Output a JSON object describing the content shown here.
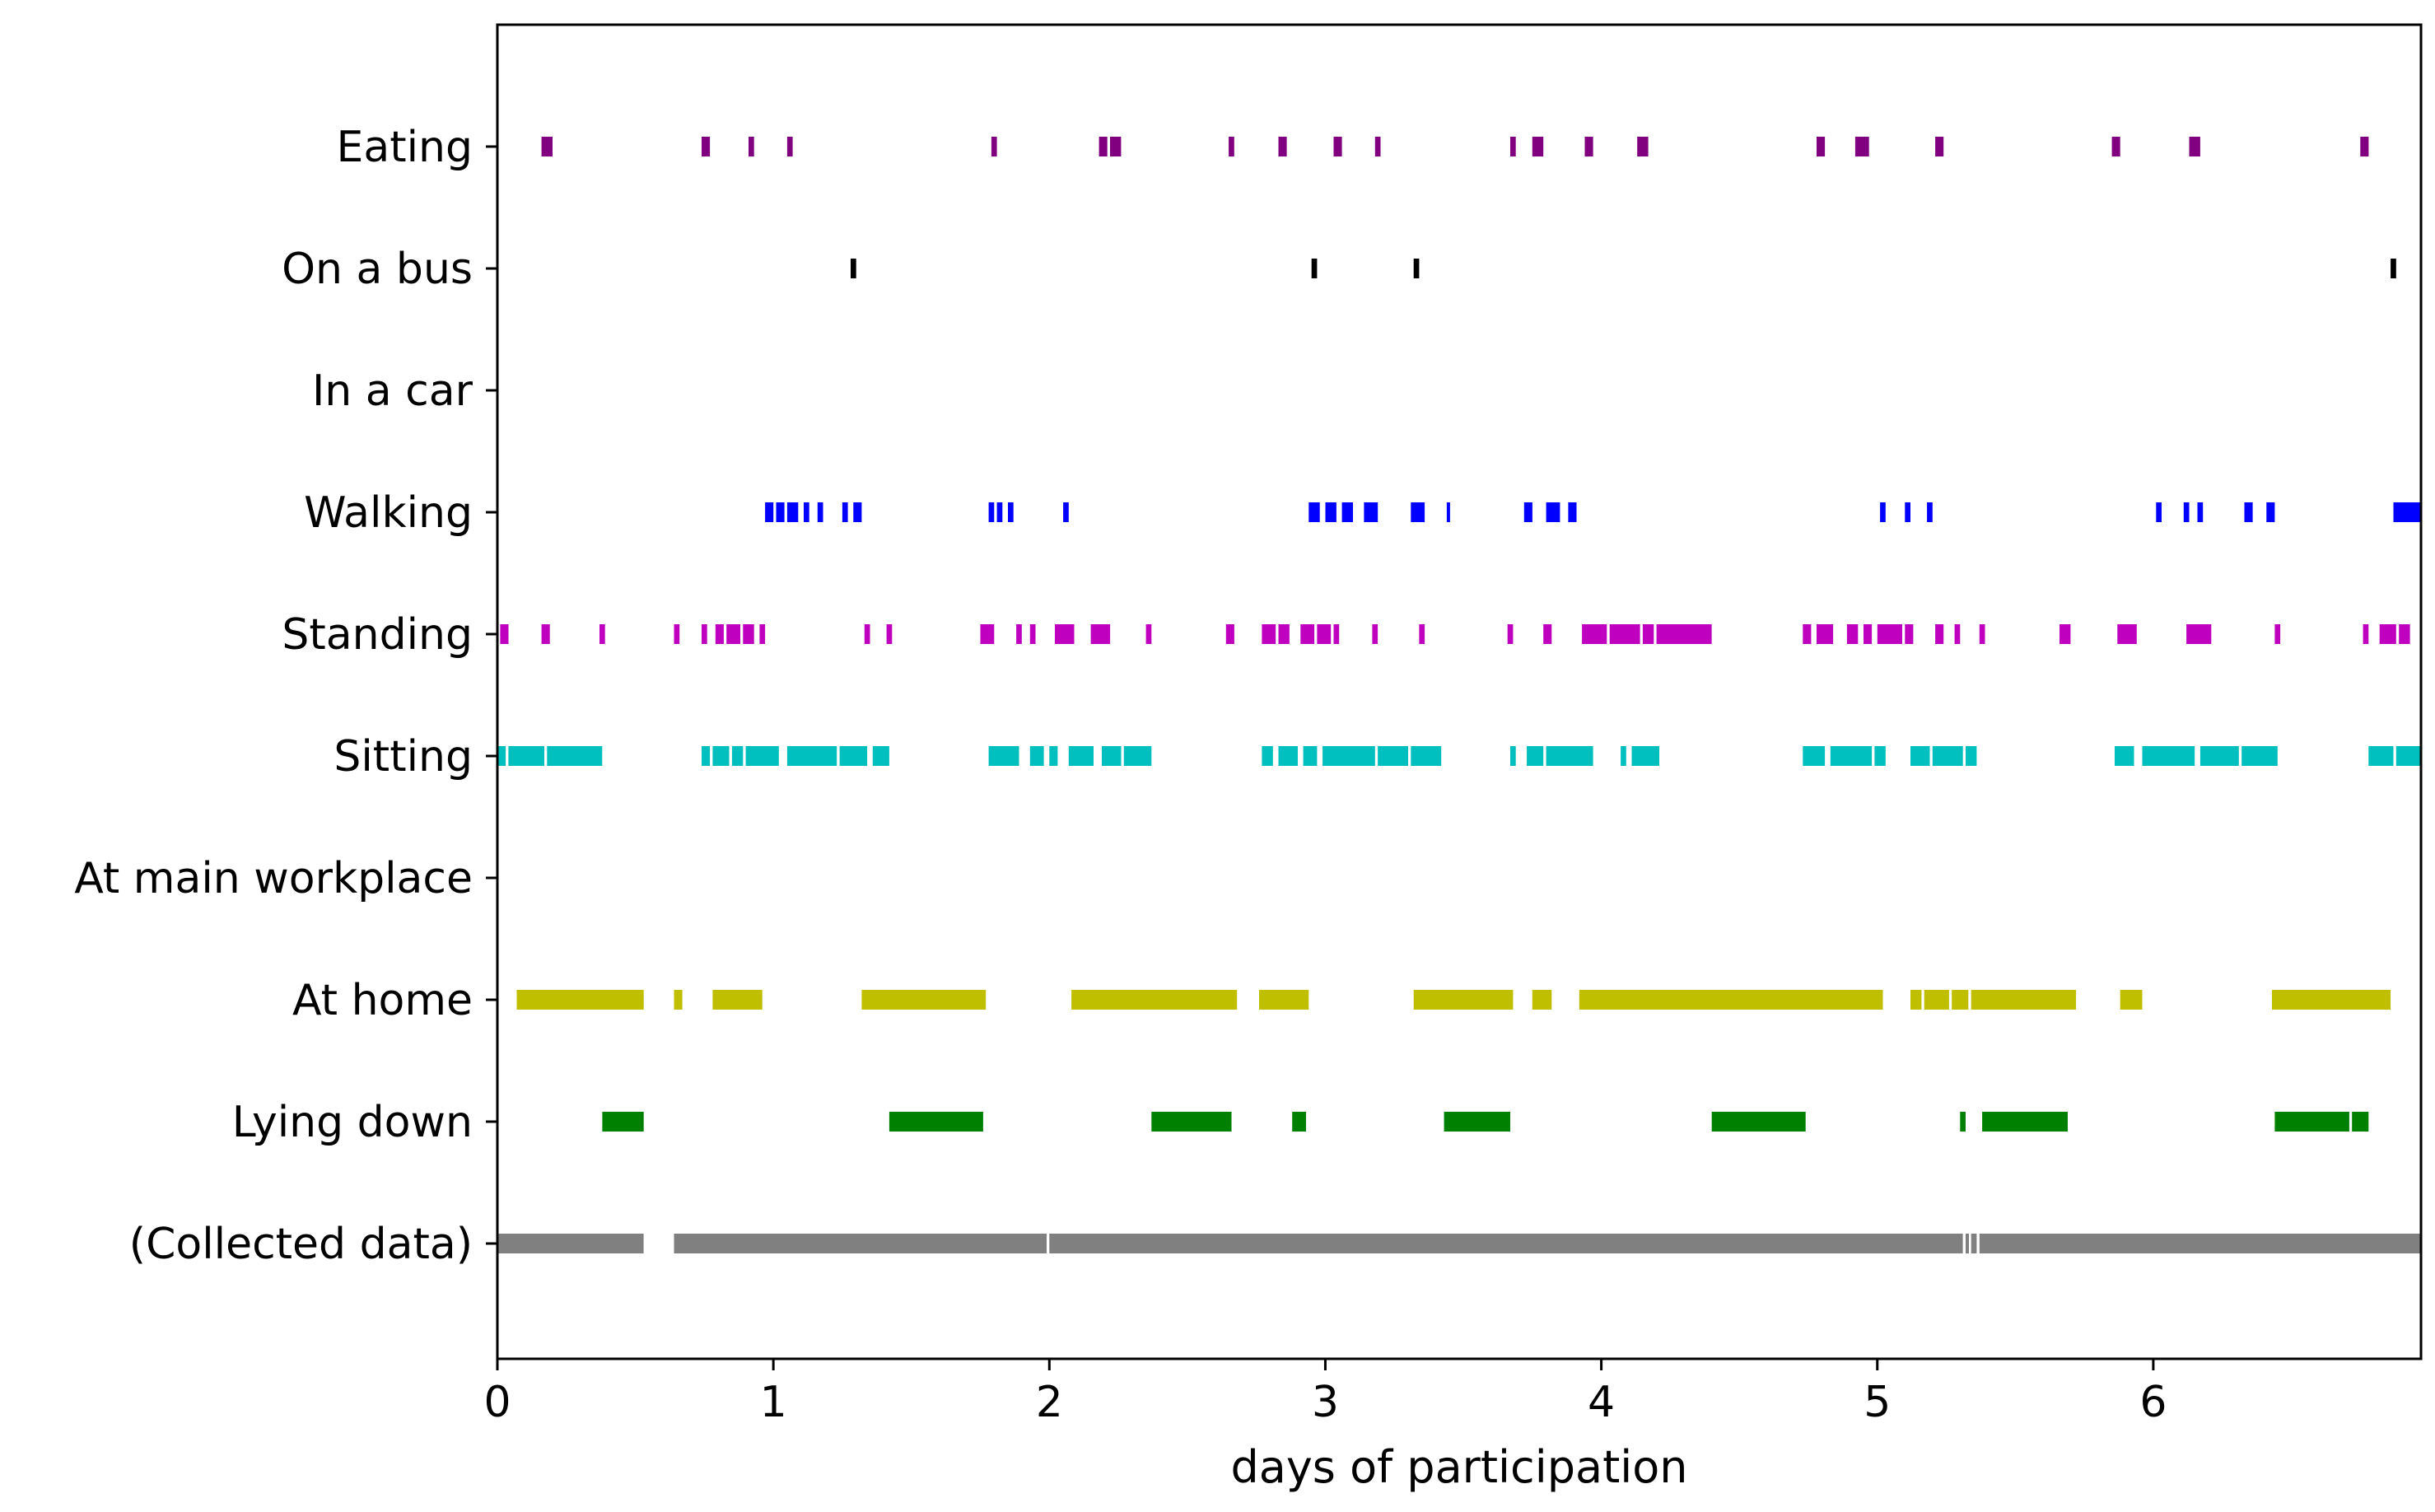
{
  "chart_data": {
    "type": "bar",
    "orientation": "horizontal-timeline",
    "title": "",
    "xlabel": "days of participation",
    "ylabel": "",
    "xlim": [
      0,
      6.97
    ],
    "xticks": [
      0,
      1,
      2,
      3,
      4,
      5,
      6
    ],
    "grid": false,
    "legend": "none",
    "categories": [
      "Eating",
      "On a bus",
      "In a car",
      "Walking",
      "Standing",
      "Sitting",
      "At main workplace",
      "At home",
      "Lying down",
      "(Collected data)"
    ],
    "series": [
      {
        "category": "Eating",
        "color": "#800080",
        "intervals": [
          [
            0.16,
            0.2
          ],
          [
            0.74,
            0.77
          ],
          [
            0.91,
            0.93
          ],
          [
            1.05,
            1.07
          ],
          [
            1.79,
            1.81
          ],
          [
            2.18,
            2.21
          ],
          [
            2.22,
            2.26
          ],
          [
            2.65,
            2.67
          ],
          [
            2.83,
            2.86
          ],
          [
            3.03,
            3.06
          ],
          [
            3.18,
            3.2
          ],
          [
            3.67,
            3.69
          ],
          [
            3.75,
            3.79
          ],
          [
            3.94,
            3.97
          ],
          [
            4.13,
            4.17
          ],
          [
            4.78,
            4.81
          ],
          [
            4.92,
            4.97
          ],
          [
            5.21,
            5.24
          ],
          [
            5.85,
            5.88
          ],
          [
            6.13,
            6.17
          ],
          [
            6.75,
            6.78
          ]
        ]
      },
      {
        "category": "On a bus",
        "color": "#000000",
        "intervals": [
          [
            1.28,
            1.3
          ],
          [
            2.95,
            2.97
          ],
          [
            3.32,
            3.34
          ],
          [
            6.86,
            6.88
          ]
        ]
      },
      {
        "category": "In a car",
        "color": "#7f7f7f",
        "intervals": []
      },
      {
        "category": "Walking",
        "color": "#0000ff",
        "intervals": [
          [
            0.97,
            1.0
          ],
          [
            1.01,
            1.04
          ],
          [
            1.05,
            1.09
          ],
          [
            1.11,
            1.13
          ],
          [
            1.16,
            1.18
          ],
          [
            1.25,
            1.27
          ],
          [
            1.29,
            1.32
          ],
          [
            1.78,
            1.8
          ],
          [
            1.81,
            1.83
          ],
          [
            1.85,
            1.87
          ],
          [
            2.05,
            2.07
          ],
          [
            2.94,
            2.98
          ],
          [
            3.0,
            3.04
          ],
          [
            3.06,
            3.1
          ],
          [
            3.14,
            3.19
          ],
          [
            3.31,
            3.36
          ],
          [
            3.44,
            3.45
          ],
          [
            3.72,
            3.75
          ],
          [
            3.8,
            3.85
          ],
          [
            3.88,
            3.91
          ],
          [
            5.01,
            5.03
          ],
          [
            5.1,
            5.12
          ],
          [
            5.18,
            5.2
          ],
          [
            6.01,
            6.03
          ],
          [
            6.11,
            6.13
          ],
          [
            6.16,
            6.18
          ],
          [
            6.33,
            6.36
          ],
          [
            6.41,
            6.44
          ],
          [
            6.87,
            6.97
          ]
        ]
      },
      {
        "category": "Standing",
        "color": "#bf00bf",
        "intervals": [
          [
            0.01,
            0.04
          ],
          [
            0.16,
            0.19
          ],
          [
            0.37,
            0.39
          ],
          [
            0.64,
            0.66
          ],
          [
            0.74,
            0.76
          ],
          [
            0.79,
            0.82
          ],
          [
            0.83,
            0.88
          ],
          [
            0.89,
            0.93
          ],
          [
            0.95,
            0.97
          ],
          [
            1.33,
            1.35
          ],
          [
            1.41,
            1.43
          ],
          [
            1.75,
            1.8
          ],
          [
            1.88,
            1.9
          ],
          [
            1.93,
            1.95
          ],
          [
            2.02,
            2.09
          ],
          [
            2.15,
            2.22
          ],
          [
            2.35,
            2.37
          ],
          [
            2.64,
            2.67
          ],
          [
            2.77,
            2.82
          ],
          [
            2.83,
            2.87
          ],
          [
            2.91,
            2.96
          ],
          [
            2.97,
            3.02
          ],
          [
            3.03,
            3.05
          ],
          [
            3.17,
            3.19
          ],
          [
            3.34,
            3.36
          ],
          [
            3.66,
            3.68
          ],
          [
            3.79,
            3.82
          ],
          [
            3.93,
            4.02
          ],
          [
            4.03,
            4.14
          ],
          [
            4.15,
            4.19
          ],
          [
            4.2,
            4.4
          ],
          [
            4.73,
            4.76
          ],
          [
            4.78,
            4.84
          ],
          [
            4.89,
            4.93
          ],
          [
            4.95,
            4.98
          ],
          [
            5.0,
            5.09
          ],
          [
            5.1,
            5.13
          ],
          [
            5.21,
            5.24
          ],
          [
            5.28,
            5.3
          ],
          [
            5.37,
            5.39
          ],
          [
            5.66,
            5.7
          ],
          [
            5.87,
            5.94
          ],
          [
            6.12,
            6.21
          ],
          [
            6.44,
            6.46
          ],
          [
            6.76,
            6.78
          ],
          [
            6.82,
            6.88
          ],
          [
            6.89,
            6.93
          ]
        ]
      },
      {
        "category": "Sitting",
        "color": "#00bfbf",
        "intervals": [
          [
            0.0,
            0.03
          ],
          [
            0.04,
            0.17
          ],
          [
            0.18,
            0.38
          ],
          [
            0.74,
            0.77
          ],
          [
            0.78,
            0.84
          ],
          [
            0.85,
            0.89
          ],
          [
            0.9,
            1.02
          ],
          [
            1.05,
            1.23
          ],
          [
            1.24,
            1.34
          ],
          [
            1.36,
            1.42
          ],
          [
            1.78,
            1.89
          ],
          [
            1.93,
            1.98
          ],
          [
            2.0,
            2.03
          ],
          [
            2.07,
            2.16
          ],
          [
            2.19,
            2.26
          ],
          [
            2.27,
            2.37
          ],
          [
            2.77,
            2.81
          ],
          [
            2.83,
            2.9
          ],
          [
            2.92,
            2.97
          ],
          [
            2.99,
            3.18
          ],
          [
            3.19,
            3.3
          ],
          [
            3.31,
            3.42
          ],
          [
            3.67,
            3.69
          ],
          [
            3.73,
            3.79
          ],
          [
            3.8,
            3.97
          ],
          [
            4.07,
            4.09
          ],
          [
            4.11,
            4.21
          ],
          [
            4.73,
            4.81
          ],
          [
            4.83,
            4.98
          ],
          [
            4.99,
            5.03
          ],
          [
            5.12,
            5.19
          ],
          [
            5.2,
            5.31
          ],
          [
            5.32,
            5.36
          ],
          [
            5.86,
            5.93
          ],
          [
            5.96,
            6.15
          ],
          [
            6.17,
            6.31
          ],
          [
            6.32,
            6.45
          ],
          [
            6.78,
            6.87
          ],
          [
            6.88,
            6.97
          ]
        ]
      },
      {
        "category": "At main workplace",
        "color": "#1f77b4",
        "intervals": []
      },
      {
        "category": "At home",
        "color": "#bfbf00",
        "intervals": [
          [
            0.07,
            0.53
          ],
          [
            0.64,
            0.67
          ],
          [
            0.78,
            0.96
          ],
          [
            1.32,
            1.77
          ],
          [
            2.08,
            2.68
          ],
          [
            2.76,
            2.94
          ],
          [
            3.32,
            3.68
          ],
          [
            3.75,
            3.82
          ],
          [
            3.92,
            5.02
          ],
          [
            5.12,
            5.16
          ],
          [
            5.17,
            5.26
          ],
          [
            5.27,
            5.33
          ],
          [
            5.34,
            5.72
          ],
          [
            5.88,
            5.96
          ],
          [
            6.43,
            6.86
          ]
        ]
      },
      {
        "category": "Lying down",
        "color": "#008000",
        "intervals": [
          [
            0.38,
            0.53
          ],
          [
            1.42,
            1.76
          ],
          [
            2.37,
            2.66
          ],
          [
            2.88,
            2.93
          ],
          [
            3.43,
            3.67
          ],
          [
            4.4,
            4.74
          ],
          [
            5.3,
            5.32
          ],
          [
            5.38,
            5.69
          ],
          [
            6.44,
            6.71
          ],
          [
            6.72,
            6.78
          ]
        ]
      },
      {
        "category": "(Collected data)",
        "color": "#808080",
        "intervals": [
          [
            0.0,
            0.53
          ],
          [
            0.64,
            1.99
          ],
          [
            2.0,
            5.31
          ],
          [
            5.32,
            5.33
          ],
          [
            5.34,
            5.36
          ],
          [
            5.37,
            6.97
          ]
        ]
      }
    ]
  }
}
